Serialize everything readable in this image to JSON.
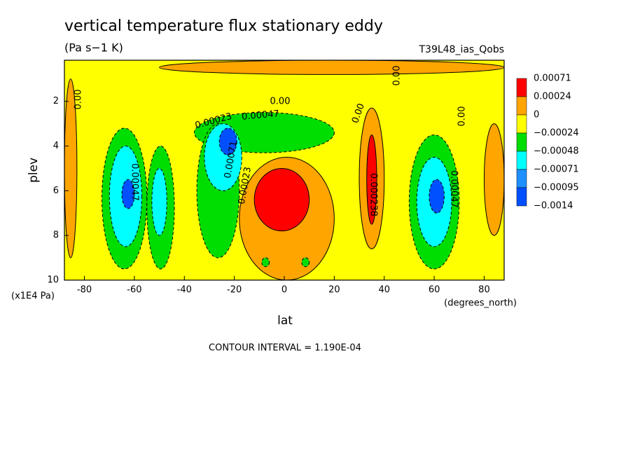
{
  "chart_data": {
    "type": "contour",
    "title": "vertical temperature flux stationary eddy",
    "subtitle": "(Pa s−1 K)",
    "run_label": "T39L48_ias_Qobs",
    "x_label": "lat",
    "y_label": "plev",
    "x_unit": "(degrees_north)",
    "y_unit": "(x1E4 Pa)",
    "footer": "CONTOUR INTERVAL = 1.190E-04",
    "xlim": [
      -88,
      88
    ],
    "ylim": [
      10,
      0.16
    ],
    "xticks": [
      -80,
      -60,
      -40,
      -20,
      0,
      20,
      40,
      60,
      80
    ],
    "yticks": [
      2,
      4,
      6,
      8,
      10
    ],
    "background_color": "#ffff00",
    "colorbar": {
      "labels": [
        0.00071,
        0.00024,
        0,
        {
          "value": -0.00024,
          "label": "−0.00024"
        },
        {
          "value": -0.00048,
          "label": "−0.00048"
        },
        {
          "value": -0.00071,
          "label": "−0.00071"
        },
        {
          "value": -0.00095,
          "label": "−0.00095"
        },
        {
          "value": -0.0014,
          "label": "−0.0014"
        }
      ],
      "colors": [
        "#ff0000",
        "#ffa500",
        "#ffff00",
        "#00dd00",
        "#00ffff",
        "#1e90ff",
        "#0050ff"
      ]
    },
    "regions": [
      {
        "level": 0.00024,
        "lat": [
          -50,
          88
        ],
        "plev": [
          0.16,
          0.8
        ]
      },
      {
        "level": 0.00024,
        "lat": [
          -88,
          -83
        ],
        "plev": [
          1,
          9
        ]
      },
      {
        "level": 0.00024,
        "lat": [
          -18,
          20
        ],
        "plev": [
          4.5,
          10
        ]
      },
      {
        "level": 0.00071,
        "lat": [
          -12,
          10
        ],
        "plev": [
          5,
          7.8
        ]
      },
      {
        "level": 0.00024,
        "lat": [
          30,
          40
        ],
        "plev": [
          2.3,
          8.6
        ]
      },
      {
        "level": 0.00071,
        "lat": [
          33,
          37
        ],
        "plev": [
          3.5,
          7.5
        ]
      },
      {
        "level": 0.00024,
        "lat": [
          80,
          88
        ],
        "plev": [
          3,
          8
        ]
      },
      {
        "level": -0.00024,
        "lat": [
          -73,
          -55
        ],
        "plev": [
          3.2,
          9.5
        ]
      },
      {
        "level": -0.00048,
        "lat": [
          -70,
          -57
        ],
        "plev": [
          4,
          8.5
        ]
      },
      {
        "level": -0.00095,
        "lat": [
          -65,
          -60
        ],
        "plev": [
          5.5,
          6.8
        ]
      },
      {
        "level": -0.00024,
        "lat": [
          -55,
          -44
        ],
        "plev": [
          4,
          9.5
        ]
      },
      {
        "level": -0.00048,
        "lat": [
          -53,
          -47
        ],
        "plev": [
          5,
          8
        ]
      },
      {
        "level": -0.00024,
        "lat": [
          -36,
          20
        ],
        "plev": [
          2.5,
          4.3
        ]
      },
      {
        "level": -0.00024,
        "lat": [
          -35,
          -18
        ],
        "plev": [
          3,
          9
        ]
      },
      {
        "level": -0.00048,
        "lat": [
          -32,
          -17
        ],
        "plev": [
          3,
          6
        ]
      },
      {
        "level": -0.00095,
        "lat": [
          -26,
          -19
        ],
        "plev": [
          3.2,
          4.4
        ]
      },
      {
        "level": -0.00024,
        "lat": [
          50,
          70
        ],
        "plev": [
          3.5,
          9.5
        ]
      },
      {
        "level": -0.00048,
        "lat": [
          53,
          67
        ],
        "plev": [
          4.5,
          8.5
        ]
      },
      {
        "level": -0.00095,
        "lat": [
          58,
          64
        ],
        "plev": [
          5.5,
          7
        ]
      },
      {
        "level": -0.00024,
        "lat": [
          -9,
          -6
        ],
        "plev": [
          9,
          9.4
        ]
      },
      {
        "level": -0.00024,
        "lat": [
          7,
          10
        ],
        "plev": [
          9,
          9.4
        ]
      }
    ],
    "contour_labels": [
      "0.00",
      "0.00",
      "0.00",
      "0.00",
      "0.00",
      "0.00023",
      "0.00047",
      "0.00071",
      "0.00023",
      "0.00047",
      "0.000238",
      "0.00047"
    ]
  }
}
